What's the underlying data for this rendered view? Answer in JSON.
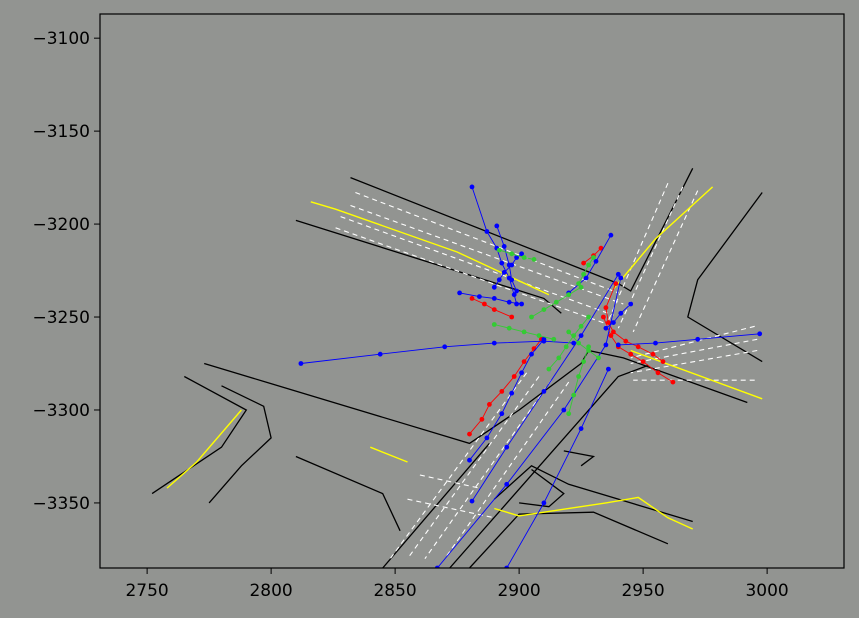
{
  "chart_data": {
    "type": "scatter",
    "title": "",
    "xlabel": "",
    "ylabel": "",
    "xlim": [
      2731,
      3031
    ],
    "ylim": [
      -3385,
      -3087
    ],
    "x_ticks": [
      2750,
      2800,
      2850,
      2900,
      2950,
      3000
    ],
    "x_tick_labels": [
      "2750",
      "2800",
      "2850",
      "2900",
      "2950",
      "3000"
    ],
    "y_ticks": [
      -3100,
      -3150,
      -3200,
      -3250,
      -3300,
      -3350
    ],
    "y_tick_labels": [
      "−3100",
      "−3150",
      "−3200",
      "−3250",
      "−3300",
      "−3350"
    ],
    "grid": false,
    "colors": {
      "background": "#929491",
      "road_surface": "#8f918e",
      "road_edge": "#000000",
      "lane_line": "#ffffff",
      "center_line": "#ffff00",
      "track_red": "#ff0000",
      "track_blue": "#0000ff",
      "track_green": "#33cc33"
    },
    "road_edges": [
      [
        [
          2832,
          -3175
        ],
        [
          2940,
          -3232
        ],
        [
          2945,
          -3236
        ],
        [
          2970,
          -3170
        ]
      ],
      [
        [
          2810,
          -3198
        ],
        [
          2910,
          -3240
        ],
        [
          2917,
          -3248
        ]
      ],
      [
        [
          2998,
          -3183
        ],
        [
          2972,
          -3230
        ],
        [
          2968,
          -3250
        ],
        [
          2998,
          -3274
        ]
      ],
      [
        [
          2992,
          -3296
        ],
        [
          2942,
          -3272
        ],
        [
          2928,
          -3268
        ],
        [
          2925,
          -3275
        ]
      ],
      [
        [
          2773,
          -3275
        ],
        [
          2880,
          -3318
        ],
        [
          2900,
          -3300
        ],
        [
          2925,
          -3275
        ]
      ],
      [
        [
          2810,
          -3325
        ],
        [
          2845,
          -3345
        ],
        [
          2852,
          -3365
        ]
      ],
      [
        [
          2888,
          -3318
        ],
        [
          2845,
          -3385
        ]
      ],
      [
        [
          2872,
          -3385
        ],
        [
          2940,
          -3282
        ],
        [
          2952,
          -3276
        ]
      ],
      [
        [
          2780,
          -3287
        ],
        [
          2797,
          -3298
        ],
        [
          2800,
          -3315
        ],
        [
          2788,
          -3330
        ],
        [
          2775,
          -3350
        ]
      ],
      [
        [
          2765,
          -3282
        ],
        [
          2790,
          -3300
        ],
        [
          2780,
          -3320
        ],
        [
          2752,
          -3345
        ]
      ],
      [
        [
          2970,
          -3360
        ],
        [
          2920,
          -3340
        ],
        [
          2905,
          -3330
        ],
        [
          2890,
          -3348
        ]
      ],
      [
        [
          2960,
          -3372
        ],
        [
          2930,
          -3355
        ],
        [
          2900,
          -3356
        ],
        [
          2880,
          -3385
        ]
      ],
      [
        [
          2905,
          -3332
        ],
        [
          2918,
          -3345
        ],
        [
          2912,
          -3352
        ],
        [
          2900,
          -3350
        ]
      ],
      [
        [
          2918,
          -3322
        ],
        [
          2930,
          -3325
        ],
        [
          2925,
          -3330
        ]
      ]
    ],
    "lane_lines": [
      [
        [
          2834,
          -3183
        ],
        [
          2940,
          -3237
        ]
      ],
      [
        [
          2832,
          -3190
        ],
        [
          2942,
          -3243
        ]
      ],
      [
        [
          2828,
          -3196
        ],
        [
          2938,
          -3249
        ]
      ],
      [
        [
          2826,
          -3202
        ],
        [
          2936,
          -3254
        ]
      ],
      [
        [
          2960,
          -3178
        ],
        [
          2935,
          -3255
        ]
      ],
      [
        [
          2966,
          -3180
        ],
        [
          2940,
          -3256
        ]
      ],
      [
        [
          2972,
          -3182
        ],
        [
          2946,
          -3258
        ]
      ],
      [
        [
          2995,
          -3255
        ],
        [
          2945,
          -3272
        ]
      ],
      [
        [
          2996,
          -3262
        ],
        [
          2945,
          -3275
        ]
      ],
      [
        [
          2996,
          -3268
        ],
        [
          2945,
          -3280
        ]
      ],
      [
        [
          2995,
          -3284
        ],
        [
          2946,
          -3284
        ]
      ],
      [
        [
          2903,
          -3280
        ],
        [
          2848,
          -3380
        ]
      ],
      [
        [
          2908,
          -3282
        ],
        [
          2855,
          -3380
        ]
      ],
      [
        [
          2913,
          -3284
        ],
        [
          2862,
          -3380
        ]
      ],
      [
        [
          2920,
          -3285
        ],
        [
          2870,
          -3380
        ]
      ],
      [
        [
          2860,
          -3335
        ],
        [
          2884,
          -3342
        ]
      ],
      [
        [
          2855,
          -3348
        ],
        [
          2890,
          -3358
        ]
      ]
    ],
    "center_lines": [
      [
        [
          2816,
          -3188
        ],
        [
          2826,
          -3192
        ],
        [
          2875,
          -3215
        ],
        [
          2912,
          -3238
        ]
      ],
      [
        [
          2978,
          -3180
        ],
        [
          2955,
          -3208
        ],
        [
          2938,
          -3235
        ]
      ],
      [
        [
          2998,
          -3294
        ],
        [
          2945,
          -3268
        ]
      ],
      [
        [
          2758,
          -3342
        ],
        [
          2770,
          -3328
        ],
        [
          2788,
          -3300
        ]
      ],
      [
        [
          2840,
          -3320
        ],
        [
          2855,
          -3328
        ]
      ],
      [
        [
          2890,
          -3353
        ],
        [
          2900,
          -3357
        ],
        [
          2935,
          -3350
        ],
        [
          2948,
          -3347
        ],
        [
          2960,
          -3358
        ],
        [
          2970,
          -3364
        ]
      ]
    ],
    "tracks": [
      {
        "color": "red",
        "points": [
          [
            2881,
            -3240
          ],
          [
            2886,
            -3243
          ],
          [
            2890,
            -3246
          ],
          [
            2897,
            -3250
          ]
        ]
      },
      {
        "color": "red",
        "points": [
          [
            2880,
            -3313
          ],
          [
            2885,
            -3305
          ],
          [
            2888,
            -3297
          ],
          [
            2893,
            -3290
          ],
          [
            2898,
            -3282
          ],
          [
            2902,
            -3274
          ],
          [
            2906,
            -3267
          ],
          [
            2909,
            -3262
          ]
        ]
      },
      {
        "color": "red",
        "points": [
          [
            2934,
            -3250
          ],
          [
            2937,
            -3260
          ],
          [
            2940,
            -3266
          ],
          [
            2945,
            -3270
          ],
          [
            2950,
            -3274
          ],
          [
            2956,
            -3280
          ],
          [
            2962,
            -3285
          ]
        ]
      },
      {
        "color": "red",
        "points": [
          [
            2939,
            -3232
          ],
          [
            2935,
            -3245
          ],
          [
            2936,
            -3253
          ],
          [
            2938,
            -3258
          ],
          [
            2943,
            -3263
          ],
          [
            2948,
            -3266
          ],
          [
            2954,
            -3270
          ],
          [
            2958,
            -3274
          ]
        ]
      },
      {
        "color": "red",
        "points": [
          [
            2926,
            -3221
          ],
          [
            2930,
            -3217
          ],
          [
            2933,
            -3213
          ]
        ]
      },
      {
        "color": "blue",
        "points": [
          [
            2881,
            -3180
          ],
          [
            2887,
            -3204
          ],
          [
            2891,
            -3213
          ],
          [
            2893,
            -3221
          ],
          [
            2896,
            -3229
          ],
          [
            2898,
            -3238
          ],
          [
            2899,
            -3243
          ]
        ]
      },
      {
        "color": "blue",
        "points": [
          [
            2891,
            -3201
          ],
          [
            2894,
            -3212
          ],
          [
            2896,
            -3222
          ],
          [
            2897,
            -3230
          ],
          [
            2899,
            -3236
          ]
        ]
      },
      {
        "color": "blue",
        "points": [
          [
            2901,
            -3216
          ],
          [
            2899,
            -3218
          ],
          [
            2897,
            -3222
          ],
          [
            2894,
            -3226
          ],
          [
            2892,
            -3230
          ],
          [
            2890,
            -3234
          ]
        ]
      },
      {
        "color": "blue",
        "points": [
          [
            2876,
            -3237
          ],
          [
            2884,
            -3239
          ],
          [
            2890,
            -3240
          ],
          [
            2896,
            -3242
          ],
          [
            2901,
            -3243
          ]
        ]
      },
      {
        "color": "blue",
        "points": [
          [
            2812,
            -3275
          ],
          [
            2844,
            -3270
          ],
          [
            2870,
            -3266
          ],
          [
            2890,
            -3264
          ],
          [
            2910,
            -3263
          ],
          [
            2922,
            -3264
          ]
        ]
      },
      {
        "color": "blue",
        "points": [
          [
            2997,
            -3259
          ],
          [
            2972,
            -3262
          ],
          [
            2955,
            -3264
          ],
          [
            2940,
            -3265
          ]
        ]
      },
      {
        "color": "blue",
        "points": [
          [
            2945,
            -3243
          ],
          [
            2941,
            -3248
          ],
          [
            2938,
            -3253
          ],
          [
            2935,
            -3256
          ]
        ]
      },
      {
        "color": "blue",
        "points": [
          [
            2881,
            -3349
          ],
          [
            2895,
            -3320
          ],
          [
            2910,
            -3290
          ],
          [
            2925,
            -3260
          ],
          [
            2940,
            -3227
          ]
        ]
      },
      {
        "color": "blue",
        "points": [
          [
            2867,
            -3385
          ],
          [
            2895,
            -3340
          ],
          [
            2918,
            -3300
          ],
          [
            2935,
            -3265
          ],
          [
            2941,
            -3229
          ]
        ]
      },
      {
        "color": "blue",
        "points": [
          [
            2895,
            -3385
          ],
          [
            2910,
            -3350
          ],
          [
            2925,
            -3310
          ],
          [
            2936,
            -3278
          ]
        ]
      },
      {
        "color": "blue",
        "points": [
          [
            2880,
            -3327
          ],
          [
            2887,
            -3315
          ],
          [
            2893,
            -3302
          ],
          [
            2897,
            -3291
          ],
          [
            2901,
            -3280
          ],
          [
            2905,
            -3270
          ],
          [
            2910,
            -3262
          ]
        ]
      },
      {
        "color": "blue",
        "points": [
          [
            2920,
            -3237
          ],
          [
            2927,
            -3229
          ],
          [
            2931,
            -3220
          ],
          [
            2937,
            -3206
          ]
        ]
      },
      {
        "color": "green",
        "points": [
          [
            2892,
            -3214
          ],
          [
            2897,
            -3216
          ],
          [
            2902,
            -3218
          ],
          [
            2906,
            -3219
          ]
        ]
      },
      {
        "color": "green",
        "points": [
          [
            2890,
            -3254
          ],
          [
            2896,
            -3256
          ],
          [
            2902,
            -3258
          ],
          [
            2908,
            -3260
          ],
          [
            2914,
            -3262
          ]
        ]
      },
      {
        "color": "green",
        "points": [
          [
            2920,
            -3302
          ],
          [
            2922,
            -3292
          ],
          [
            2924,
            -3282
          ],
          [
            2926,
            -3274
          ],
          [
            2928,
            -3266
          ]
        ]
      },
      {
        "color": "green",
        "points": [
          [
            2912,
            -3278
          ],
          [
            2916,
            -3272
          ],
          [
            2919,
            -3266
          ],
          [
            2922,
            -3260
          ],
          [
            2925,
            -3255
          ],
          [
            2928,
            -3250
          ]
        ]
      },
      {
        "color": "green",
        "points": [
          [
            2905,
            -3250
          ],
          [
            2910,
            -3246
          ],
          [
            2915,
            -3242
          ],
          [
            2920,
            -3238
          ],
          [
            2925,
            -3234
          ]
        ]
      },
      {
        "color": "green",
        "points": [
          [
            2924,
            -3232
          ],
          [
            2926,
            -3227
          ],
          [
            2928,
            -3222
          ],
          [
            2930,
            -3218
          ]
        ]
      },
      {
        "color": "green",
        "points": [
          [
            2920,
            -3258
          ],
          [
            2924,
            -3264
          ],
          [
            2928,
            -3268
          ],
          [
            2932,
            -3272
          ]
        ]
      }
    ]
  }
}
